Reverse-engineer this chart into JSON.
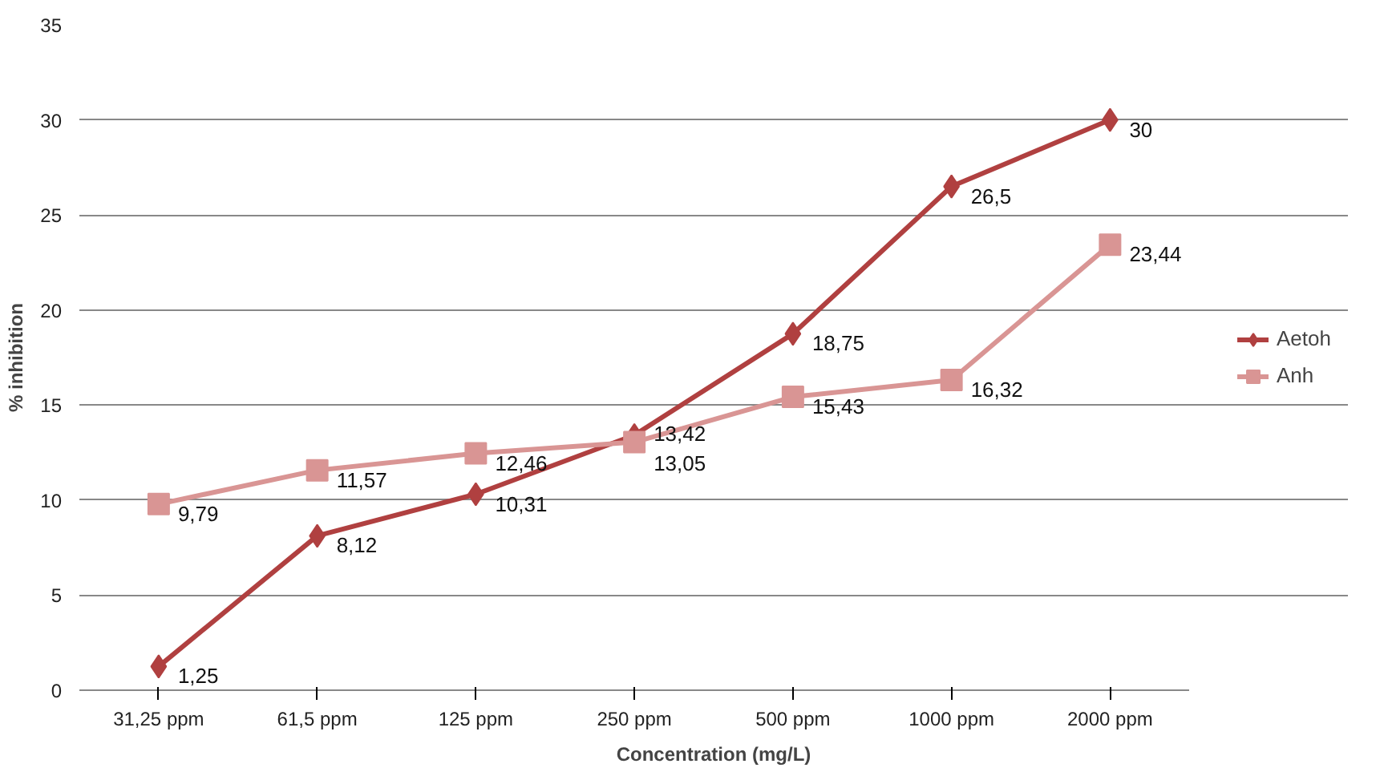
{
  "chart_data": {
    "type": "line",
    "xlabel": "Concentration (mg/L)",
    "ylabel": "% inhibition",
    "categories": [
      "31,25 ppm",
      "61,5 ppm",
      "125 ppm",
      "250 ppm",
      "500 ppm",
      "1000 ppm",
      "2000 ppm"
    ],
    "series": [
      {
        "name": "Aetoh",
        "color": "#b04040",
        "marker": "diamond",
        "values": [
          1.25,
          8.12,
          10.31,
          13.42,
          18.75,
          26.5,
          30
        ],
        "value_labels": [
          "1,25",
          "8,12",
          "10,31",
          "13,42",
          "18,75",
          "26,5",
          "30"
        ]
      },
      {
        "name": "Anh",
        "color": "#d99594",
        "marker": "square",
        "values": [
          9.79,
          11.57,
          12.46,
          13.05,
          15.43,
          16.32,
          23.44
        ],
        "value_labels": [
          "9,79",
          "11,57",
          "12,46",
          "13,05",
          "15,43",
          "16,32",
          "23,44"
        ]
      }
    ],
    "ylim": [
      0,
      35
    ],
    "yticks": [
      0,
      5,
      10,
      15,
      20,
      25,
      30,
      35
    ],
    "grid": "y",
    "legend": "right"
  }
}
